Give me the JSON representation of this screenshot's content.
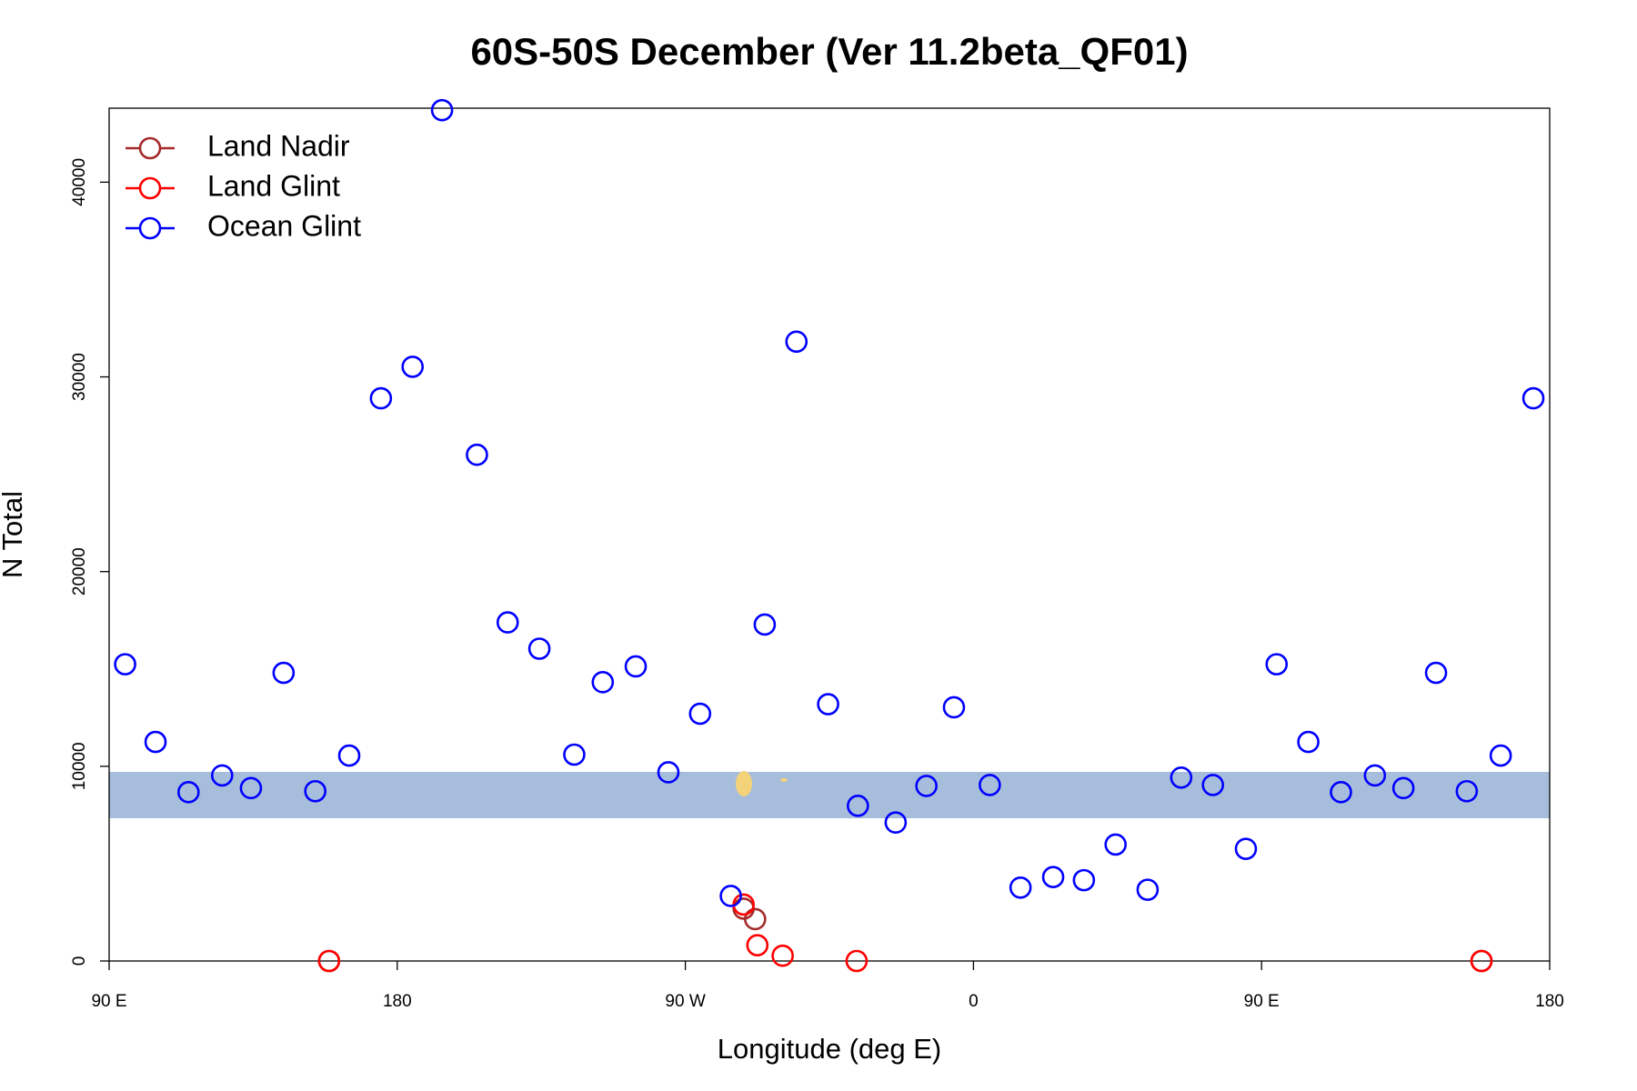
{
  "chart_data": {
    "type": "scatter",
    "title": "60S-50S December (Ver 11.2beta_QF01)",
    "x_label": "Longitude (deg E)",
    "y_label": "N Total",
    "xlim": [
      90,
      540
    ],
    "xticks": [
      {
        "value": 90,
        "label": "90 E"
      },
      180,
      {
        "value": 270,
        "label": "90 W"
      },
      {
        "value": 360,
        "label": "0"
      },
      {
        "value": 450,
        "label": "90 E"
      },
      {
        "value": 540,
        "label": "180"
      }
    ],
    "ylim": [
      0,
      43800
    ],
    "yticks": [
      0,
      10000,
      20000,
      30000,
      40000
    ],
    "legend": "topleft",
    "series": [
      {
        "name": "Land Nadir",
        "color": "#a52a2a",
        "x": [
          158.7,
          288.2,
          291.8,
          518.7
        ],
        "values": [
          0,
          2690,
          2150,
          0
        ]
      },
      {
        "name": "Land Glint",
        "color": "#ff0000",
        "x": [
          158.7,
          288.2,
          292.5,
          300.4,
          323.5,
          518.7
        ],
        "values": [
          0,
          2900,
          810,
          270,
          0,
          0
        ]
      },
      {
        "name": "Ocean Glint",
        "color": "#0000ff",
        "x": [
          95,
          104.5,
          114.8,
          125.3,
          134.3,
          144.5,
          154.4,
          165,
          174.9,
          184.8,
          194,
          204.9,
          214.5,
          224.4,
          235.3,
          244.2,
          254.5,
          264.7,
          274.6,
          284.2,
          294.8,
          304.7,
          314.6,
          323.9,
          335.7,
          345.3,
          353.9,
          365.1,
          374.7,
          384.9,
          394.5,
          404.4,
          414.4,
          424.9,
          434.8,
          445.1,
          454.7,
          464.6,
          474.8,
          485.4,
          494.3,
          504.5,
          514.1,
          524.7,
          534.9
        ],
        "values": [
          15240,
          11250,
          8670,
          9530,
          8880,
          14800,
          8720,
          10550,
          28900,
          30520,
          43700,
          26000,
          17390,
          16040,
          10600,
          14320,
          15130,
          9690,
          12700,
          3340,
          17280,
          31810,
          13190,
          7970,
          7110,
          8990,
          13030,
          9040,
          3770,
          4310,
          4150,
          5980,
          3660,
          9420,
          9040,
          5760,
          15240,
          11250,
          8670,
          9530,
          8880,
          14800,
          8720,
          10550,
          28900
        ]
      }
    ]
  }
}
